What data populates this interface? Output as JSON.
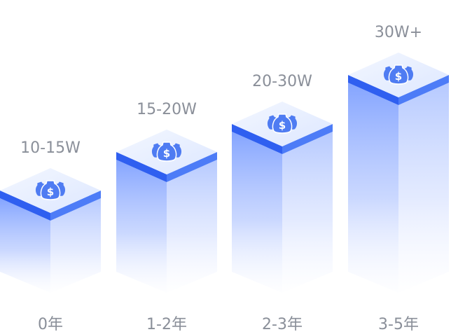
{
  "chart_data": {
    "type": "bar",
    "categories": [
      "0年",
      "1-2年",
      "2-3年",
      "3-5年"
    ],
    "value_labels": [
      "10-15W",
      "15-20W",
      "20-30W",
      "30W+"
    ],
    "icon": "money-bag-dollar-icon",
    "colors": {
      "top_face": "#e8efff",
      "band_left": "#2f5ff0",
      "band_right": "#4d7cf7",
      "body": "#5b86ff",
      "icon": "#4f7cf2",
      "label": "#8a8f99"
    }
  }
}
